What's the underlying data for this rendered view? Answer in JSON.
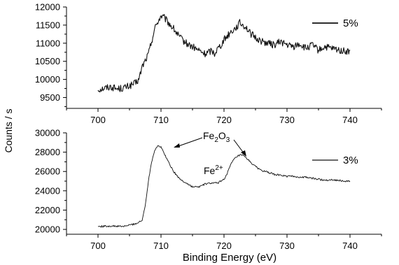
{
  "chart_data": [
    {
      "type": "line",
      "panel": "top",
      "xlim": [
        695,
        745
      ],
      "ylim": [
        9200,
        12000
      ],
      "x_ticks": [
        "700",
        "710",
        "720",
        "730",
        "740"
      ],
      "y_ticks": [
        "9500",
        "10000",
        "10500",
        "11000",
        "11500",
        "12000"
      ],
      "legend": "5%",
      "legend_position": "top-right",
      "series": [
        {
          "name": "5%",
          "x": [
            700,
            701,
            702,
            703,
            704,
            705,
            706,
            706.5,
            707,
            707.5,
            708,
            708.5,
            709,
            709.5,
            710,
            710.5,
            711,
            712,
            713,
            714,
            715,
            716,
            717,
            718,
            718.5,
            719,
            719.5,
            720,
            721,
            722,
            722.5,
            723,
            723.5,
            724,
            725,
            726,
            727,
            728,
            729,
            730,
            731,
            732,
            733,
            734,
            735,
            736,
            737,
            738,
            739,
            740
          ],
          "y": [
            9720,
            9760,
            9800,
            9740,
            9760,
            9820,
            9900,
            10000,
            10350,
            10520,
            10700,
            11050,
            11400,
            11600,
            11750,
            11700,
            11600,
            11400,
            11150,
            11000,
            10900,
            10800,
            10700,
            10800,
            10720,
            10860,
            10950,
            11100,
            11300,
            11450,
            11560,
            11500,
            11450,
            11300,
            11150,
            11050,
            11000,
            10950,
            11050,
            10950,
            10900,
            10980,
            10850,
            10950,
            10800,
            10900,
            10850,
            10820,
            10780,
            10760
          ]
        }
      ]
    },
    {
      "type": "line",
      "panel": "bottom",
      "xlim": [
        695,
        745
      ],
      "ylim": [
        19500,
        30000
      ],
      "x_ticks": [
        "700",
        "710",
        "720",
        "730",
        "740"
      ],
      "y_ticks": [
        "20000",
        "22000",
        "24000",
        "26000",
        "28000",
        "30000"
      ],
      "legend": "3%",
      "legend_position": "top-right",
      "annotations": [
        {
          "text": "Fe",
          "sub": "2",
          "text2": "O",
          "sub2": "3"
        },
        {
          "text": "Fe",
          "sup": "2+"
        }
      ],
      "series": [
        {
          "name": "3%",
          "x": [
            700,
            702,
            704,
            705,
            706,
            707,
            707.5,
            708,
            708.5,
            709,
            709.5,
            710,
            710.5,
            711,
            712,
            713,
            714,
            715,
            716,
            717,
            718,
            719,
            720,
            720.5,
            721,
            721.5,
            722,
            722.5,
            723,
            723.5,
            724,
            725,
            726,
            727,
            728,
            729,
            730,
            731,
            732,
            733,
            734,
            735,
            736,
            737,
            738,
            739,
            740
          ],
          "y": [
            20300,
            20350,
            20300,
            20450,
            20600,
            20900,
            22500,
            25000,
            27000,
            28200,
            28700,
            28500,
            27900,
            27200,
            26000,
            25200,
            24800,
            24400,
            24400,
            24700,
            24800,
            24800,
            25200,
            25800,
            26600,
            27200,
            27500,
            27700,
            27650,
            27400,
            27100,
            26500,
            26100,
            25900,
            25700,
            25600,
            25500,
            25500,
            25400,
            25400,
            25300,
            25200,
            25100,
            25150,
            25100,
            25000,
            24950
          ]
        }
      ]
    }
  ],
  "axes": {
    "xlabel": "Binding Energy (eV)",
    "ylabel": "Counts / s"
  },
  "labels": {
    "legend_top": "5%",
    "legend_bottom": "3%",
    "fe2o3_main": "Fe",
    "fe2o3_sub1": "2",
    "fe2o3_mid": "O",
    "fe2o3_sub2": "3",
    "fe2_main": "Fe",
    "fe2_sup": "2+"
  },
  "colors": {
    "line": "#111111",
    "axis": "#000000"
  }
}
